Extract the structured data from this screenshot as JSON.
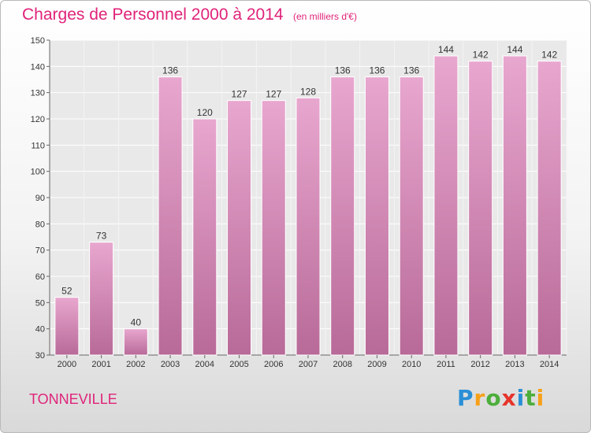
{
  "chart_data": {
    "type": "bar",
    "title": "Charges de Personnel 2000 à 2014",
    "subtitle": "(en milliers d'€)",
    "categories": [
      "2000",
      "2001",
      "2002",
      "2003",
      "2004",
      "2005",
      "2006",
      "2007",
      "2008",
      "2009",
      "2010",
      "2011",
      "2012",
      "2013",
      "2014"
    ],
    "values": [
      52,
      73,
      40,
      136,
      120,
      127,
      127,
      128,
      136,
      136,
      136,
      144,
      142,
      144,
      142
    ],
    "ylim": [
      30,
      150
    ],
    "yticks": [
      30,
      40,
      50,
      60,
      70,
      80,
      90,
      100,
      110,
      120,
      130,
      140,
      150
    ],
    "grid": true,
    "bar_color": "#d98fbb"
  },
  "footer": {
    "commune": "TONNEVILLE",
    "brand_letters": [
      "P",
      "r",
      "o",
      "x",
      "i",
      "t",
      "i"
    ]
  }
}
